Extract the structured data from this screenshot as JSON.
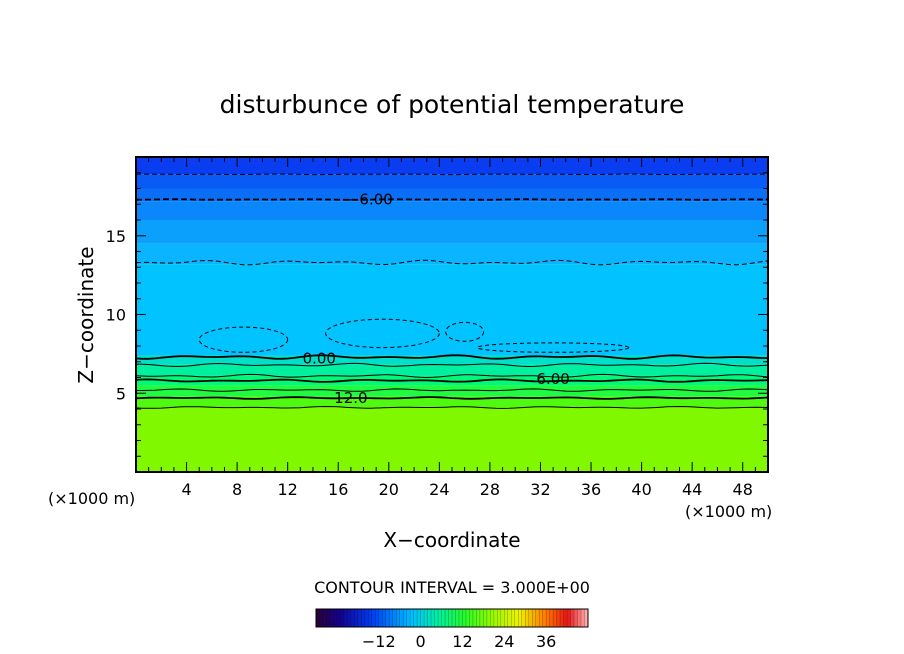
{
  "chart_data": {
    "type": "heatmap",
    "title": "disturbunce of potential temperature",
    "xlabel": "X−coordinate",
    "ylabel": "Z−coordinate",
    "x_unit_left": "(×1000 m)",
    "x_unit_right": "(×1000 m)",
    "xlim": [
      0,
      50
    ],
    "ylim": [
      0,
      20
    ],
    "x_ticks": [
      4,
      8,
      12,
      16,
      20,
      24,
      28,
      32,
      36,
      40,
      44,
      48
    ],
    "y_ticks": [
      5,
      10,
      15
    ],
    "contour_interval_label": "CONTOUR INTERVAL = 3.000E+00",
    "contour_labels": [
      {
        "text": "−6.00",
        "x": 18.5,
        "y": 17.3
      },
      {
        "text": "0.00",
        "x": 14.5,
        "y": 7.2
      },
      {
        "text": "6.00",
        "x": 33.0,
        "y": 5.9
      },
      {
        "text": "12.0",
        "x": 17.0,
        "y": 4.7
      }
    ],
    "bands": [
      {
        "z": [
          18.9,
          20
        ],
        "color": "#0a3cf0"
      },
      {
        "z": [
          18.0,
          18.9
        ],
        "color": "#0a5af5"
      },
      {
        "z": [
          17.2,
          18.0
        ],
        "color": "#0a6ef7"
      },
      {
        "z": [
          16.0,
          17.2
        ],
        "color": "#0a87fa"
      },
      {
        "z": [
          14.5,
          16.0
        ],
        "color": "#0aa0fc"
      },
      {
        "z": [
          13.2,
          14.5
        ],
        "color": "#0ab4fe"
      },
      {
        "z": [
          7.4,
          13.2
        ],
        "color": "#00c3ff"
      },
      {
        "z": [
          6.8,
          7.4
        ],
        "color": "#00e0c8"
      },
      {
        "z": [
          6.1,
          6.8
        ],
        "color": "#00f0a0"
      },
      {
        "z": [
          5.5,
          6.1
        ],
        "color": "#00fa78"
      },
      {
        "z": [
          4.8,
          5.5
        ],
        "color": "#20fa40"
      },
      {
        "z": [
          4.1,
          4.8
        ],
        "color": "#50fa10"
      },
      {
        "z": [
          0,
          4.1
        ],
        "color": "#80f800"
      }
    ],
    "colorbar": {
      "range": [
        -30,
        48
      ],
      "tick_labels": [
        "−12",
        "0",
        "12",
        "24",
        "36"
      ],
      "tick_values": [
        -12,
        0,
        12,
        24,
        36
      ]
    }
  }
}
